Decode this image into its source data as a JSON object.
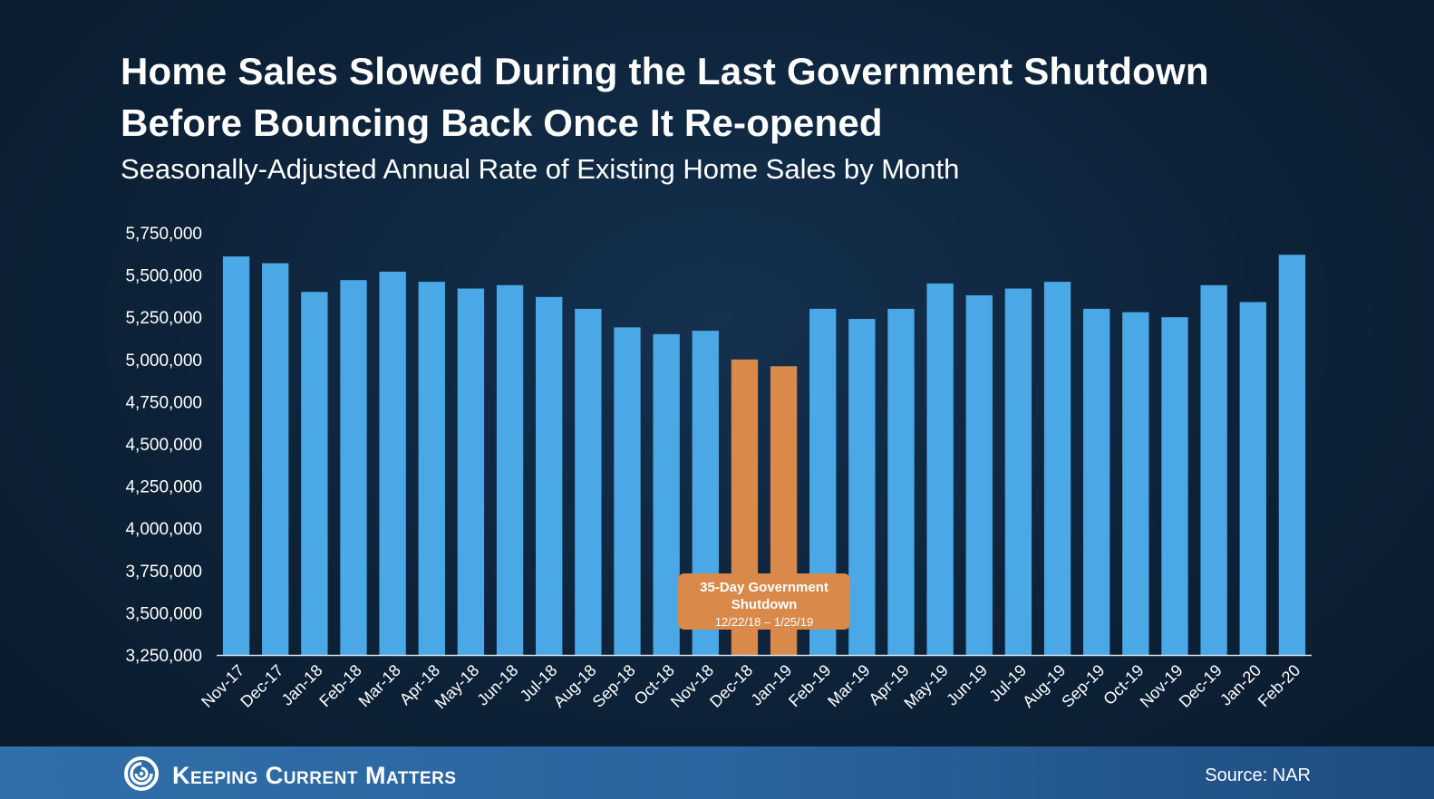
{
  "header": {
    "title": "Home Sales Slowed During the Last Government Shutdown Before Bouncing Back Once It Re-opened",
    "subtitle": "Seasonally-Adjusted Annual Rate of Existing Home Sales by Month"
  },
  "chart_data": {
    "type": "bar",
    "title": "Home Sales Slowed During the Last Government Shutdown Before Bouncing Back Once It Re-opened",
    "subtitle": "Seasonally-Adjusted Annual Rate of Existing Home Sales by Month",
    "categories": [
      "Nov-17",
      "Dec-17",
      "Jan-18",
      "Feb-18",
      "Mar-18",
      "Apr-18",
      "May-18",
      "Jun-18",
      "Jul-18",
      "Aug-18",
      "Sep-18",
      "Oct-18",
      "Nov-18",
      "Dec-18",
      "Jan-19",
      "Feb-19",
      "Mar-19",
      "Apr-19",
      "May-19",
      "Jun-19",
      "Jul-19",
      "Aug-19",
      "Sep-19",
      "Oct-19",
      "Nov-19",
      "Dec-19",
      "Jan-20",
      "Feb-20"
    ],
    "values": [
      5610000,
      5570000,
      5400000,
      5470000,
      5520000,
      5460000,
      5420000,
      5440000,
      5370000,
      5300000,
      5190000,
      5150000,
      5170000,
      5000000,
      4960000,
      5300000,
      5240000,
      5300000,
      5450000,
      5380000,
      5420000,
      5460000,
      5300000,
      5280000,
      5250000,
      5440000,
      5340000,
      5620000
    ],
    "highlighted": [
      "Dec-18",
      "Jan-19"
    ],
    "ylim": [
      3250000,
      5750000
    ],
    "yticks": [
      "3,250,000",
      "3,500,000",
      "3,750,000",
      "4,000,000",
      "4,250,000",
      "4,500,000",
      "4,750,000",
      "5,000,000",
      "5,250,000",
      "5,500,000",
      "5,750,000"
    ],
    "colors": {
      "bar": "#4aa8e6",
      "highlight": "#d9894a",
      "axis": "#d8e2ec"
    },
    "grid": false,
    "annotation": {
      "line1": "35-Day Government",
      "line2": "Shutdown",
      "line3": "12/22/18 – 1/25/19"
    }
  },
  "footer": {
    "brand": "Keeping Current Matters",
    "logo_icon": "swirl-logo-icon",
    "source": "Source: NAR"
  }
}
